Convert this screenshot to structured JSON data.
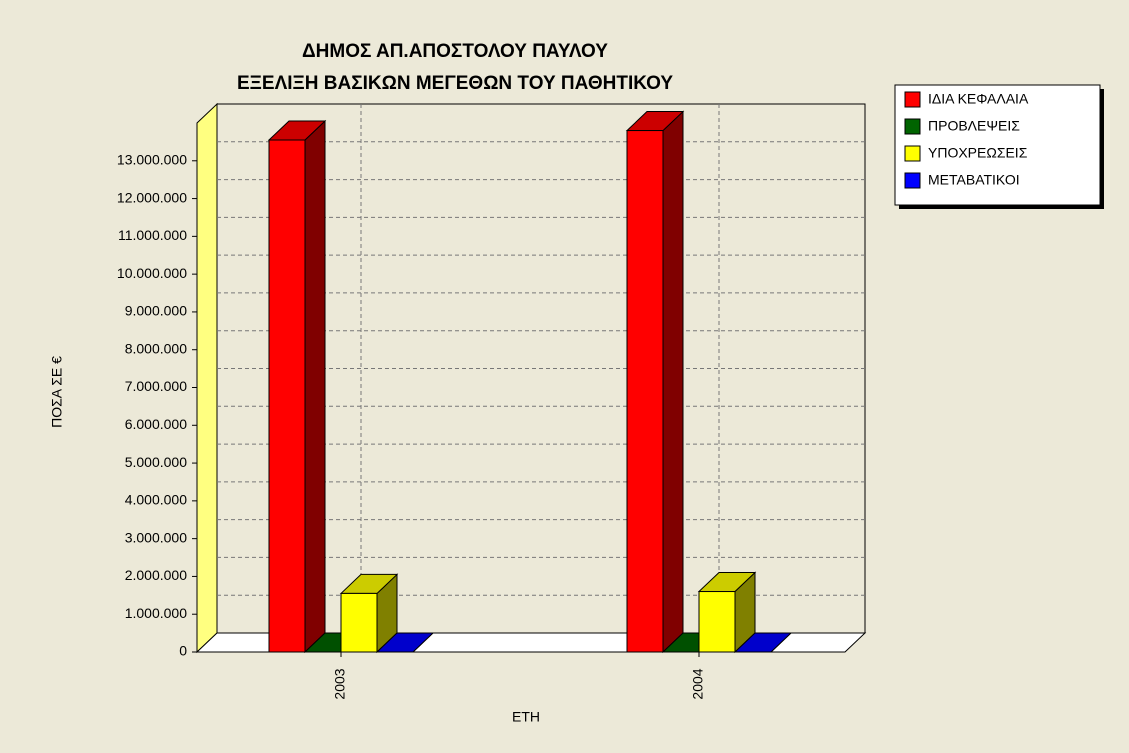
{
  "chart_data": {
    "type": "bar3d",
    "title": [
      "ΔΗΜΟΣ ΑΠ.ΑΠΟΣΤΟΛΟΥ ΠΑΥΛΟΥ",
      "ΕΞΕΛΙΞΗ ΒΑΣΙΚΩΝ ΜΕΓΕΘΩΝ ΤΟΥ ΠΑΘΗΤΙΚΟΥ"
    ],
    "x_label": "ΕΤΗ",
    "y_label": "ΠΟΣΑ ΣΕ €",
    "categories": [
      "2003",
      "2004"
    ],
    "series": [
      {
        "name": "ΙΔΙΑ ΚΕΦΑΛΑΙΑ",
        "color": "#ff0000",
        "values": [
          13550000,
          13800000
        ]
      },
      {
        "name": "ΠΡΟΒΛΕΨΕΙΣ",
        "color": "#006400",
        "values": [
          0,
          0
        ]
      },
      {
        "name": "ΥΠΟΧΡΕΩΣΕΙΣ",
        "color": "#ffff00",
        "values": [
          1550000,
          1600000
        ]
      },
      {
        "name": "ΜΕΤΑΒΑΤΙΚΟΙ",
        "color": "#0000ff",
        "values": [
          0,
          0
        ]
      }
    ],
    "ylim": [
      0,
      14000000
    ],
    "yticks": [
      0,
      {
        "value": 1000000,
        "label": "1.000.000"
      },
      {
        "value": 2000000,
        "label": "2.000.000"
      },
      {
        "value": 3000000,
        "label": "3.000.000"
      },
      {
        "value": 4000000,
        "label": "4.000.000"
      },
      {
        "value": 5000000,
        "label": "5.000.000"
      },
      {
        "value": 6000000,
        "label": "6.000.000"
      },
      {
        "value": 7000000,
        "label": "7.000.000"
      },
      {
        "value": 8000000,
        "label": "8.000.000"
      },
      {
        "value": 9000000,
        "label": "9.000.000"
      },
      {
        "value": 10000000,
        "label": "10.000.000"
      },
      {
        "value": 11000000,
        "label": "11.000.000"
      },
      {
        "value": 12000000,
        "label": "12.000.000"
      },
      {
        "value": 13000000,
        "label": "13.000.000"
      }
    ],
    "grid": true,
    "legend": "top-right"
  }
}
